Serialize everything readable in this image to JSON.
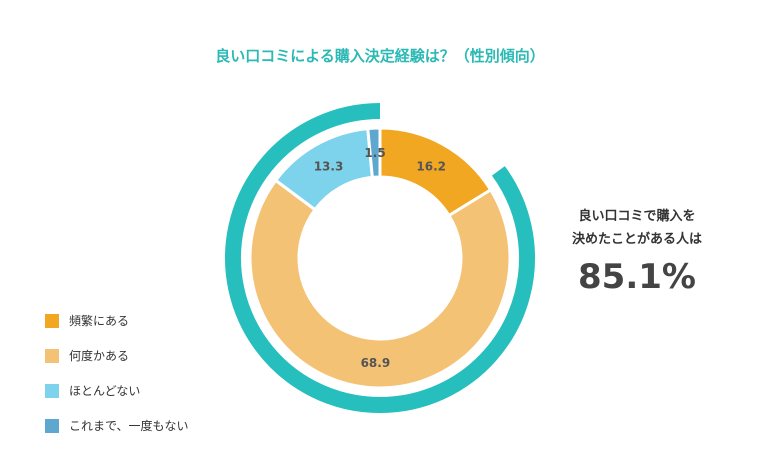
{
  "colors": {
    "title": "#2bb9b5",
    "ring": "#26bfbd",
    "slices": [
      "#f1a722",
      "#f4c274",
      "#7dd3ec",
      "#5ea8cf"
    ]
  },
  "chart_data": {
    "type": "pie",
    "variant": "donut",
    "title": "良い口コミによる購入決定経験は？（性別傾向）",
    "unit": "%",
    "categories": [
      "頻繁にある",
      "何度かある",
      "ほとんどない",
      "これまで、一度もない"
    ],
    "values": [
      16.2,
      68.9,
      13.3,
      1.5
    ],
    "value_labels": [
      "16.2",
      "68.9",
      "13.3",
      "1.5"
    ],
    "legend_position": "bottom-left",
    "highlight_ring_total": 85.1
  },
  "callout": {
    "line1": "良い口コミで購入を",
    "line2": "決めたことがある人は",
    "value": "85.1%"
  }
}
